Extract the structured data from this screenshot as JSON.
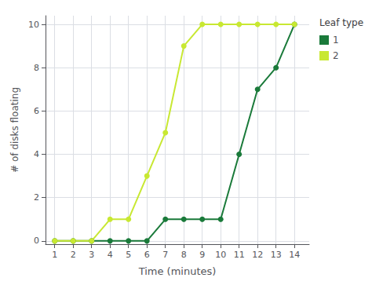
{
  "chart_data": {
    "type": "line",
    "xlabel": "Time (minutes)",
    "ylabel": "# of disks floating",
    "legend_title": "Leaf type",
    "x": [
      1,
      2,
      3,
      4,
      5,
      6,
      7,
      8,
      9,
      10,
      11,
      12,
      13,
      14
    ],
    "series": [
      {
        "name": "1",
        "color": "#1a7a3a",
        "marker": "circle",
        "values": [
          0,
          0,
          0,
          0,
          0,
          0,
          1,
          1,
          1,
          1,
          4,
          7,
          8,
          10
        ]
      },
      {
        "name": "2",
        "color": "#c8e832",
        "marker": "circle",
        "values": [
          0,
          0,
          0,
          1,
          1,
          3,
          5,
          9,
          10,
          10,
          10,
          10,
          10,
          10
        ]
      }
    ],
    "xlim": [
      0.5,
      14.8
    ],
    "ylim": [
      -0.15,
      10.4
    ],
    "xticks": [
      1,
      2,
      3,
      4,
      5,
      6,
      7,
      8,
      9,
      10,
      11,
      12,
      13,
      14
    ],
    "yticks": [
      0,
      2,
      4,
      6,
      8,
      10
    ],
    "grid": true,
    "legend": "right"
  }
}
